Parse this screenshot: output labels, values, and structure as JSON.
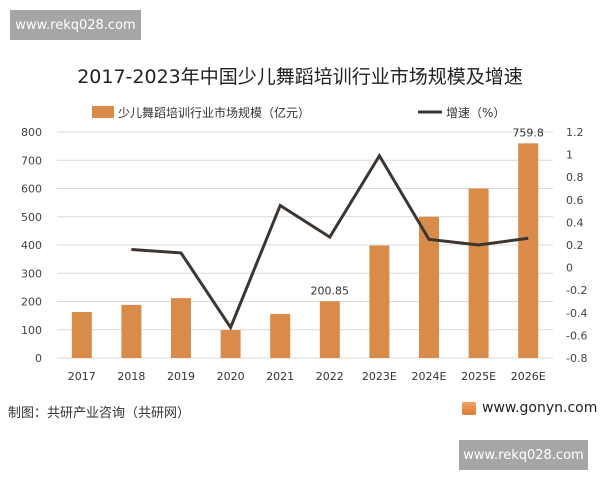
{
  "watermark": "www.rekq028.com",
  "chart_data": {
    "type": "bar+line",
    "title": "2017-2023年中国少儿舞蹈培训行业市场规模及增速",
    "categories": [
      "2017",
      "2018",
      "2019",
      "2020",
      "2021",
      "2022",
      "2023E",
      "2024E",
      "2025E",
      "2026E"
    ],
    "series": [
      {
        "name": "少儿舞蹈培训行业市场规模（亿元）",
        "type": "bar",
        "axis": "left",
        "color": "#d98c4a",
        "values": [
          163,
          188,
          212,
          99,
          156,
          200.85,
          398,
          500,
          600,
          759.8
        ]
      },
      {
        "name": "增速（%）",
        "type": "line",
        "axis": "right",
        "color": "#3d3530",
        "values": [
          null,
          0.16,
          0.13,
          -0.53,
          0.55,
          0.27,
          0.99,
          0.25,
          0.2,
          0.26
        ]
      }
    ],
    "data_labels": [
      {
        "category": "2022",
        "text": "200.85"
      },
      {
        "category": "2026E",
        "text": "759.8"
      }
    ],
    "ylim_left": [
      0,
      800
    ],
    "yticks_left": [
      "0",
      "100",
      "200",
      "300",
      "400",
      "500",
      "600",
      "700",
      "800"
    ],
    "ylim_right": [
      -0.8,
      1.2
    ],
    "yticks_right": [
      "-0.8",
      "-0.6",
      "-0.4",
      "-0.2",
      "0",
      "0.2",
      "0.4",
      "0.6",
      "0.8",
      "1",
      "1.2"
    ],
    "grid": true,
    "legend_placement": "top"
  },
  "footer": {
    "source": "制图：共研产业咨询（共研网）",
    "site": "www.gonyn.com"
  }
}
